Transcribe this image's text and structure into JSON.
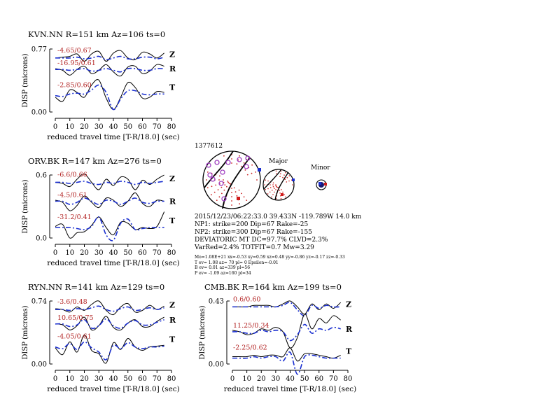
{
  "event": {
    "id": "1377612",
    "major_label": "Major",
    "minor_label": "Minor",
    "info_lines": [
      "2015/12/23/06:22:33.0 39.433N -119.789W 14.0 km",
      "NP1: strike=200 Dip=67 Rake=-25",
      "NP2: strike=300 Dip=67 Rake=-155",
      "DEVIATORIC MT DC=97.7% CLVD=2.3%",
      "VarRed=2.4% TOTFIT=0.7 Mw=3.29"
    ],
    "small_lines": [
      "Mo=1.08E+21 xx=-0.53 xy=0.59 xz=0.48 yy=-0.86 yz=-0.17 zz=-0.33",
      "T ev=  1.08 az=  70 pl=  0 Epsilon=-0.01",
      "B ev=  0.01 az=339 pl=56",
      "P ev= -1.09 az=160 pl=34"
    ]
  },
  "colors": {
    "observed": "#000000",
    "synthetic": "#1a2fd0",
    "label": "#b22222",
    "focal_dot": "#cc2222",
    "focal_circle": "#a040c0"
  },
  "chart_data": [
    {
      "type": "line",
      "title": "KVN.NN R=151 km Az=106 ts=0",
      "xlabel": "reduced travel time [T-R/18.0] (sec)",
      "ylabel": "DISP (microns)",
      "x_ticks": [
        "0",
        "10",
        "20",
        "30",
        "40",
        "50",
        "60",
        "70",
        "80"
      ],
      "xlim": [
        0,
        80
      ],
      "y_ticks": [
        "0.77",
        "0.00"
      ],
      "components": [
        {
          "name": "Z",
          "label": "-4.65/0.67",
          "x": [
            0,
            5,
            10,
            15,
            20,
            25,
            30,
            35,
            40,
            45,
            50,
            55,
            60,
            65,
            70,
            75
          ],
          "observed": [
            0.66,
            0.67,
            0.68,
            0.71,
            0.62,
            0.71,
            0.74,
            0.62,
            0.72,
            0.75,
            0.66,
            0.64,
            0.73,
            0.71,
            0.66,
            0.72
          ],
          "synthetic": [
            0.66,
            0.66,
            0.66,
            0.67,
            0.65,
            0.66,
            0.68,
            0.64,
            0.66,
            0.68,
            0.65,
            0.65,
            0.67,
            0.67,
            0.65,
            0.67
          ]
        },
        {
          "name": "R",
          "label": "-16.95/0.61",
          "x": [
            0,
            5,
            10,
            15,
            20,
            25,
            30,
            35,
            40,
            45,
            50,
            55,
            60,
            65,
            70,
            75
          ],
          "observed": [
            0.53,
            0.51,
            0.45,
            0.52,
            0.56,
            0.47,
            0.51,
            0.58,
            0.49,
            0.44,
            0.55,
            0.56,
            0.47,
            0.5,
            0.58,
            0.56
          ],
          "synthetic": [
            0.52,
            0.52,
            0.51,
            0.52,
            0.53,
            0.5,
            0.51,
            0.53,
            0.51,
            0.49,
            0.53,
            0.53,
            0.51,
            0.51,
            0.53,
            0.53
          ]
        },
        {
          "name": "T",
          "label": "-2.85/0.60",
          "x": [
            0,
            5,
            10,
            15,
            20,
            25,
            30,
            35,
            40,
            45,
            50,
            55,
            60,
            65,
            70,
            75
          ],
          "observed": [
            0.18,
            0.13,
            0.27,
            0.24,
            0.18,
            0.33,
            0.39,
            0.17,
            0.03,
            0.18,
            0.36,
            0.3,
            0.17,
            0.18,
            0.25,
            0.24
          ],
          "synthetic": [
            0.2,
            0.19,
            0.22,
            0.23,
            0.22,
            0.27,
            0.33,
            0.24,
            0.03,
            0.16,
            0.26,
            0.26,
            0.22,
            0.21,
            0.22,
            0.22
          ]
        }
      ]
    },
    {
      "type": "line",
      "title": "ORV.BK R=147 km Az=276 ts=0",
      "xlabel": "reduced travel time [T-R/18.0] (sec)",
      "ylabel": "DISP (microns)",
      "x_ticks": [
        "0",
        "10",
        "20",
        "30",
        "40",
        "50",
        "60",
        "70",
        "80"
      ],
      "xlim": [
        0,
        80
      ],
      "y_ticks": [
        "0.6",
        "0.0"
      ],
      "components": [
        {
          "name": "Z",
          "label": "-6.6/0.66",
          "x": [
            0,
            5,
            10,
            15,
            20,
            25,
            30,
            35,
            40,
            45,
            50,
            55,
            60,
            65,
            70,
            75
          ],
          "observed": [
            0.53,
            0.52,
            0.49,
            0.56,
            0.61,
            0.53,
            0.46,
            0.56,
            0.5,
            0.58,
            0.56,
            0.46,
            0.55,
            0.51,
            0.56,
            0.6
          ],
          "synthetic": [
            0.53,
            0.53,
            0.52,
            0.53,
            0.54,
            0.52,
            0.51,
            0.53,
            0.52,
            0.54,
            0.53,
            0.51,
            0.53,
            0.52,
            0.53,
            0.54
          ]
        },
        {
          "name": "R",
          "label": "-4.5/0.61",
          "x": [
            0,
            5,
            10,
            15,
            20,
            25,
            30,
            35,
            40,
            45,
            50,
            55,
            60,
            65,
            70,
            75
          ],
          "observed": [
            0.36,
            0.34,
            0.26,
            0.31,
            0.4,
            0.34,
            0.29,
            0.38,
            0.36,
            0.3,
            0.35,
            0.43,
            0.33,
            0.3,
            0.36,
            0.35
          ],
          "synthetic": [
            0.35,
            0.35,
            0.32,
            0.34,
            0.38,
            0.35,
            0.32,
            0.36,
            0.35,
            0.32,
            0.35,
            0.38,
            0.34,
            0.33,
            0.35,
            0.35
          ]
        },
        {
          "name": "T",
          "label": "-31.2/0.41",
          "x": [
            0,
            5,
            10,
            15,
            20,
            25,
            30,
            35,
            40,
            45,
            50,
            55,
            60,
            65,
            70,
            75
          ],
          "observed": [
            0.11,
            0.13,
            0.0,
            0.05,
            0.06,
            0.12,
            0.2,
            0.1,
            0.03,
            0.15,
            0.14,
            0.08,
            0.1,
            0.09,
            0.11,
            0.25
          ],
          "synthetic": [
            0.1,
            0.1,
            0.1,
            0.09,
            0.08,
            0.11,
            0.2,
            0.03,
            -0.02,
            0.14,
            0.18,
            0.08,
            0.09,
            0.1,
            0.1,
            0.1
          ]
        }
      ]
    },
    {
      "type": "line",
      "title": "RYN.NN R=141 km Az=129 ts=0",
      "xlabel": "reduced travel time [T-R/18.0] (sec)",
      "ylabel": "DISP (microns)",
      "x_ticks": [
        "0",
        "10",
        "20",
        "30",
        "40",
        "50",
        "60",
        "70",
        "80"
      ],
      "xlim": [
        0,
        80
      ],
      "y_ticks": [
        "0.74",
        "0.00"
      ],
      "components": [
        {
          "name": "Z",
          "label": "-3.6/0.48",
          "x": [
            0,
            5,
            10,
            15,
            20,
            25,
            30,
            35,
            40,
            45,
            50,
            55,
            60,
            65,
            70,
            75
          ],
          "observed": [
            0.65,
            0.64,
            0.61,
            0.67,
            0.63,
            0.7,
            0.74,
            0.63,
            0.58,
            0.67,
            0.71,
            0.61,
            0.63,
            0.69,
            0.64,
            0.68
          ],
          "synthetic": [
            0.64,
            0.64,
            0.63,
            0.65,
            0.64,
            0.66,
            0.68,
            0.64,
            0.62,
            0.65,
            0.67,
            0.63,
            0.64,
            0.66,
            0.64,
            0.66
          ]
        },
        {
          "name": "R",
          "label": "10.65/0.75",
          "x": [
            0,
            5,
            10,
            15,
            20,
            25,
            30,
            35,
            40,
            45,
            50,
            55,
            60,
            65,
            70,
            75
          ],
          "observed": [
            0.47,
            0.46,
            0.4,
            0.45,
            0.55,
            0.4,
            0.45,
            0.56,
            0.43,
            0.4,
            0.48,
            0.52,
            0.44,
            0.44,
            0.5,
            0.55
          ],
          "synthetic": [
            0.47,
            0.47,
            0.44,
            0.46,
            0.52,
            0.42,
            0.45,
            0.53,
            0.45,
            0.42,
            0.48,
            0.51,
            0.46,
            0.46,
            0.49,
            0.52
          ]
        },
        {
          "name": "T",
          "label": "-4.05/0.61",
          "x": [
            0,
            5,
            10,
            15,
            20,
            25,
            30,
            35,
            40,
            45,
            50,
            55,
            60,
            65,
            70,
            75
          ],
          "observed": [
            0.19,
            0.11,
            0.26,
            0.14,
            0.34,
            0.16,
            0.12,
            0.01,
            0.25,
            0.17,
            0.3,
            0.2,
            0.16,
            0.2,
            0.21,
            0.22
          ],
          "synthetic": [
            0.2,
            0.18,
            0.24,
            0.17,
            0.26,
            0.19,
            0.14,
            0.05,
            0.22,
            0.18,
            0.25,
            0.2,
            0.18,
            0.2,
            0.2,
            0.21
          ]
        }
      ]
    },
    {
      "type": "line",
      "title": "CMB.BK R=164 km Az=199 ts=0",
      "xlabel": "reduced travel time [T-R/18.0] (sec)",
      "ylabel": "DISP (microns)",
      "x_ticks": [
        "0",
        "10",
        "20",
        "30",
        "40",
        "50",
        "60",
        "70",
        "80"
      ],
      "xlim": [
        0,
        80
      ],
      "y_ticks": [
        "0.43",
        "0.00"
      ],
      "components": [
        {
          "name": "Z",
          "label": "0.6/0.60",
          "x": [
            0,
            5,
            10,
            15,
            20,
            25,
            30,
            35,
            40,
            45,
            50,
            55,
            60,
            65,
            70,
            75
          ],
          "observed": [
            0.39,
            0.39,
            0.39,
            0.4,
            0.4,
            0.4,
            0.39,
            0.41,
            0.43,
            0.39,
            0.34,
            0.41,
            0.37,
            0.41,
            0.38,
            0.42
          ],
          "synthetic": [
            0.39,
            0.39,
            0.39,
            0.39,
            0.39,
            0.39,
            0.39,
            0.4,
            0.42,
            0.37,
            0.33,
            0.4,
            0.38,
            0.4,
            0.39,
            0.39
          ]
        },
        {
          "name": "R",
          "label": "11.25/0.34",
          "x": [
            0,
            5,
            10,
            15,
            20,
            25,
            30,
            35,
            40,
            45,
            50,
            55,
            60,
            65,
            70,
            75
          ],
          "observed": [
            0.23,
            0.22,
            0.2,
            0.21,
            0.24,
            0.23,
            0.25,
            0.22,
            0.11,
            0.18,
            0.34,
            0.24,
            0.31,
            0.28,
            0.33,
            0.3
          ],
          "synthetic": [
            0.22,
            0.22,
            0.21,
            0.21,
            0.23,
            0.22,
            0.23,
            0.22,
            0.16,
            0.2,
            0.27,
            0.21,
            0.24,
            0.23,
            0.25,
            0.24
          ]
        },
        {
          "name": "T",
          "label": "-2.25/0.62",
          "x": [
            0,
            5,
            10,
            15,
            20,
            25,
            30,
            35,
            40,
            45,
            50,
            55,
            60,
            65,
            70,
            75
          ],
          "observed": [
            0.05,
            0.05,
            0.05,
            0.06,
            0.05,
            0.06,
            0.06,
            0.05,
            0.11,
            0.02,
            0.07,
            0.07,
            0.06,
            0.05,
            0.04,
            0.06
          ],
          "synthetic": [
            0.04,
            0.04,
            0.04,
            0.05,
            0.04,
            0.05,
            0.05,
            0.02,
            0.08,
            -0.07,
            0.05,
            0.06,
            0.05,
            0.04,
            0.04,
            0.04
          ]
        }
      ]
    }
  ]
}
